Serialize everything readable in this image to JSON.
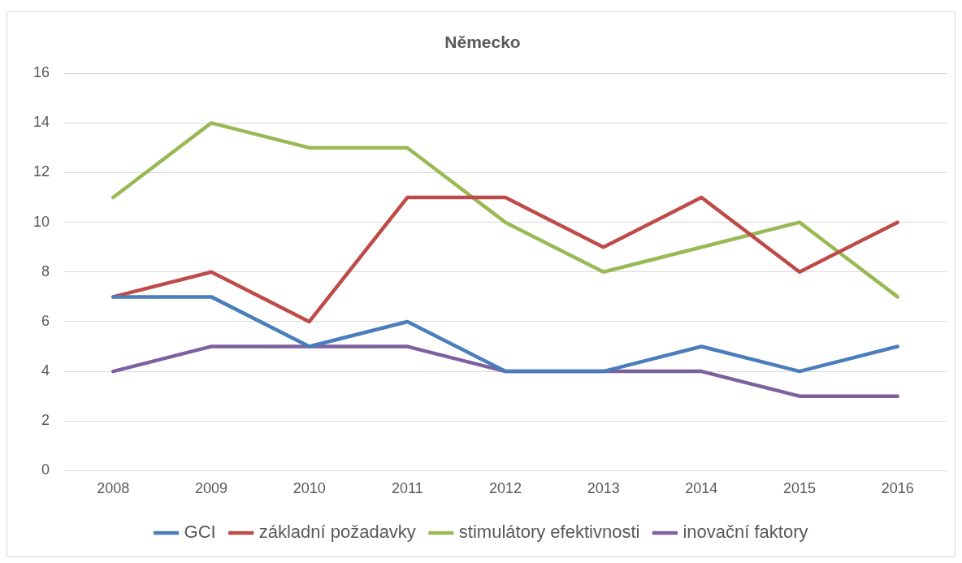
{
  "chart_data": {
    "type": "line",
    "title": "Německo",
    "categories": [
      "2008",
      "2009",
      "2010",
      "2011",
      "2012",
      "2013",
      "2014",
      "2015",
      "2016"
    ],
    "series": [
      {
        "name": "GCI",
        "color": "#4a7ebb",
        "values": [
          7,
          7,
          5,
          6,
          4,
          4,
          5,
          4,
          5
        ]
      },
      {
        "name": "základní požadavky",
        "color": "#be4b48",
        "values": [
          7,
          8,
          6,
          11,
          11,
          9,
          11,
          8,
          10
        ]
      },
      {
        "name": "stimulátory efektivnosti",
        "color": "#98b954",
        "values": [
          11,
          14,
          13,
          13,
          10,
          8,
          9,
          10,
          7
        ]
      },
      {
        "name": "inovační faktory",
        "color": "#7d60a0",
        "values": [
          4,
          5,
          5,
          5,
          4,
          4,
          4,
          3,
          3
        ]
      }
    ],
    "ylim": [
      0,
      16
    ],
    "yticks": [
      0,
      2,
      4,
      6,
      8,
      10,
      12,
      14,
      16
    ],
    "grid": "y",
    "legend": "bottom",
    "marker": "none",
    "line_style": "solid"
  }
}
